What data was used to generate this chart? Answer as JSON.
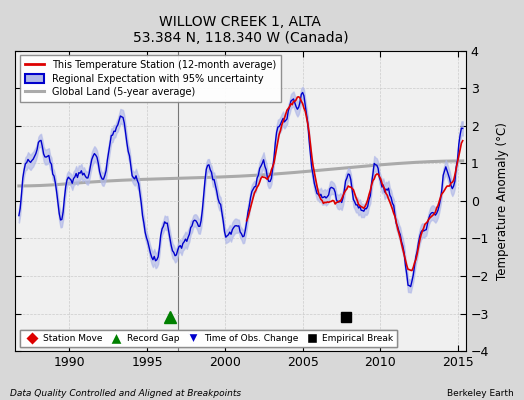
{
  "title": "WILLOW CREEK 1, ALTA",
  "subtitle": "53.384 N, 118.340 W (Canada)",
  "ylabel": "Temperature Anomaly (°C)",
  "xlim": [
    1986.5,
    2015.5
  ],
  "ylim": [
    -4,
    4
  ],
  "yticks": [
    -4,
    -3,
    -2,
    -1,
    0,
    1,
    2,
    3,
    4
  ],
  "xticks": [
    1990,
    1995,
    2000,
    2005,
    2010,
    2015
  ],
  "footer_left": "Data Quality Controlled and Aligned at Breakpoints",
  "footer_right": "Berkeley Earth",
  "legend_entries": [
    "This Temperature Station (12-month average)",
    "Regional Expectation with 95% uncertainty",
    "Global Land (5-year average)"
  ],
  "marker_events": {
    "record_gap_x": 1996.5,
    "record_gap_y": -3.1,
    "empirical_break_x": 2007.8,
    "empirical_break_y": -3.1
  },
  "colors": {
    "station": "#dd0000",
    "regional": "#0000cc",
    "regional_fill": "#b0b8e8",
    "global_land": "#aaaaaa",
    "background": "#d8d8d8",
    "plot_bg": "#f0f0f0",
    "grid": "#cccccc"
  },
  "fig_width": 5.24,
  "fig_height": 4.0,
  "dpi": 100
}
